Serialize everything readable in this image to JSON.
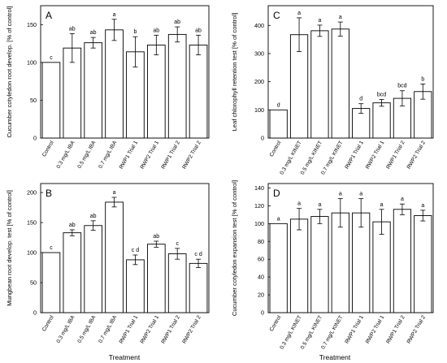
{
  "chart_data": [
    {
      "panel": "A",
      "type": "bar",
      "ylabel": "Cucumber cotyledon root develop. [% of control]",
      "ylim": [
        0,
        175
      ],
      "yticks": [
        0,
        50,
        100,
        150
      ],
      "categories": [
        "Control",
        "0.3 mg/L IBA",
        "0.5 mg/L IBA",
        "0.7 mg/L IBA",
        "RWP1 Trial 1",
        "RWP2 Trial 1",
        "RWP1 Trial 2",
        "RWP2 Trial 2"
      ],
      "values": [
        100,
        119,
        126,
        143,
        114,
        123,
        137,
        123
      ],
      "errors": [
        0,
        19,
        7,
        14,
        20,
        13,
        10,
        13
      ],
      "letters": [
        "c",
        "ab",
        "ab",
        "a",
        "b",
        "ab",
        "ab",
        "ab"
      ]
    },
    {
      "panel": "C",
      "type": "bar",
      "ylabel": "Leaf chlorophyll retention test [% of control]",
      "ylim": [
        0,
        470
      ],
      "yticks": [
        0,
        100,
        200,
        300,
        400
      ],
      "categories": [
        "Control",
        "0.3 mg/L KINET",
        "0.5 mg/L KINET",
        "0.7 mg/L KINET",
        "RWP1 Trial 1",
        "RWP2 Trial 1",
        "RWP1 Trial 2",
        "RWP2 Trial 2"
      ],
      "values": [
        100,
        367,
        381,
        387,
        105,
        125,
        141,
        165
      ],
      "errors": [
        0,
        60,
        20,
        25,
        17,
        12,
        27,
        27
      ],
      "letters": [
        "d",
        "a",
        "a",
        "a",
        "d",
        "bcd",
        "bcd",
        "b"
      ]
    },
    {
      "panel": "B",
      "type": "bar",
      "ylabel": "Mungbean root develop. test [% of control]",
      "ylim": [
        0,
        215
      ],
      "yticks": [
        0,
        50,
        100,
        150,
        200
      ],
      "categories": [
        "Control",
        "0.3 mg/L IBA",
        "0.5 mg/L IBA",
        "0.7 mg/L IBA",
        "RWP1 Trial 1",
        "RWP2 Trial 1",
        "RWP1 Trial 2",
        "RWP2 Trial 2"
      ],
      "values": [
        100,
        133,
        145,
        184,
        88,
        114,
        98,
        82
      ],
      "errors": [
        0,
        5,
        8,
        8,
        8,
        5,
        9,
        7
      ],
      "letters": [
        "c",
        "ab",
        "ab",
        "a",
        "c d",
        "ab",
        "c",
        "c d"
      ]
    },
    {
      "panel": "D",
      "type": "bar",
      "ylabel": "Cucumber cotyledon expansion test [% of control]",
      "ylim": [
        0,
        145
      ],
      "yticks": [
        0,
        20,
        40,
        60,
        80,
        100,
        120,
        140
      ],
      "categories": [
        "Control",
        "0.3 mg/L KINET",
        "0.5 mg/L KINET",
        "0.7 mg/L KINET",
        "RWP1 Trial 1",
        "RWP2 Trial 1",
        "RWP1 Trial 2",
        "RWP2 Trial 2"
      ],
      "values": [
        100,
        105,
        108,
        112,
        112,
        102,
        116,
        109
      ],
      "errors": [
        0,
        12,
        8,
        16,
        16,
        14,
        6,
        6
      ],
      "letters": [
        "a",
        "a",
        "a",
        "a",
        "a",
        "a",
        "a",
        "a"
      ]
    }
  ],
  "xlabel_left": "Treatment",
  "xlabel_right": "Treatment"
}
